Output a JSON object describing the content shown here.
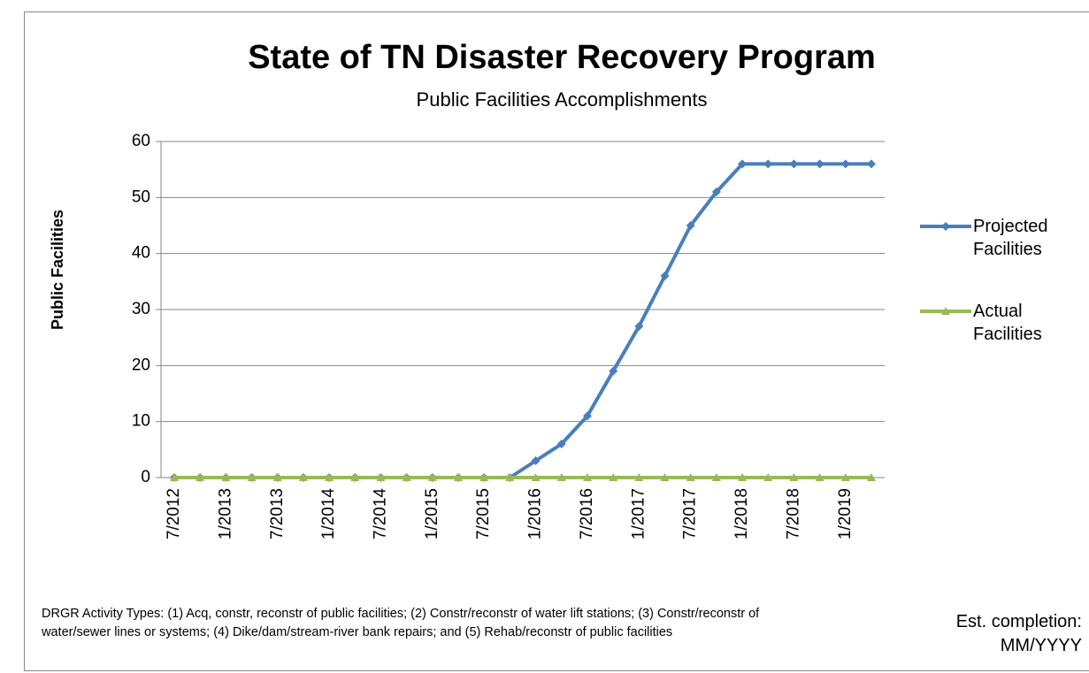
{
  "chart_data": {
    "type": "line",
    "title": "State of TN Disaster Recovery Program",
    "subtitle": "Public Facilities Accomplishments",
    "y_label": "Public Facilities",
    "categories": [
      "7/2012",
      null,
      "1/2013",
      null,
      "7/2013",
      null,
      "1/2014",
      null,
      "7/2014",
      null,
      "1/2015",
      null,
      "7/2015",
      null,
      "1/2016",
      null,
      "7/2016",
      null,
      "1/2017",
      null,
      "7/2017",
      null,
      "1/2018",
      null,
      "7/2018",
      null,
      "1/2019",
      null
    ],
    "series": [
      {
        "name": "Projected Facilities",
        "color": "#4a7ebb",
        "marker": "diamond",
        "values": [
          0,
          0,
          0,
          0,
          0,
          0,
          0,
          0,
          0,
          0,
          0,
          0,
          0,
          0,
          3,
          6,
          11,
          19,
          27,
          36,
          45,
          51,
          56,
          56,
          56,
          56,
          56,
          56
        ]
      },
      {
        "name": "Actual Facilities",
        "color": "#98b954",
        "marker": "triangle",
        "values": [
          0,
          0,
          0,
          0,
          0,
          0,
          0,
          0,
          0,
          0,
          0,
          0,
          0,
          0,
          0,
          0,
          0,
          0,
          0,
          0,
          0,
          0,
          0,
          0,
          0,
          0,
          0,
          0
        ]
      }
    ],
    "ylim": [
      0,
      60
    ],
    "yticks": [
      0,
      10,
      20,
      30,
      40,
      50,
      60
    ],
    "grid": true,
    "legend": "right",
    "footnote": "DRGR Activity Types: (1) Acq, constr, reconstr of public facilities; (2) Constr/reconstr of water lift stations; (3) Constr/reconstr of water/sewer lines or systems; (4) Dike/dam/stream-river bank repairs; and (5) Rehab/reconstr of public facilities",
    "annotation": "Est. completion: MM/YYYY"
  }
}
